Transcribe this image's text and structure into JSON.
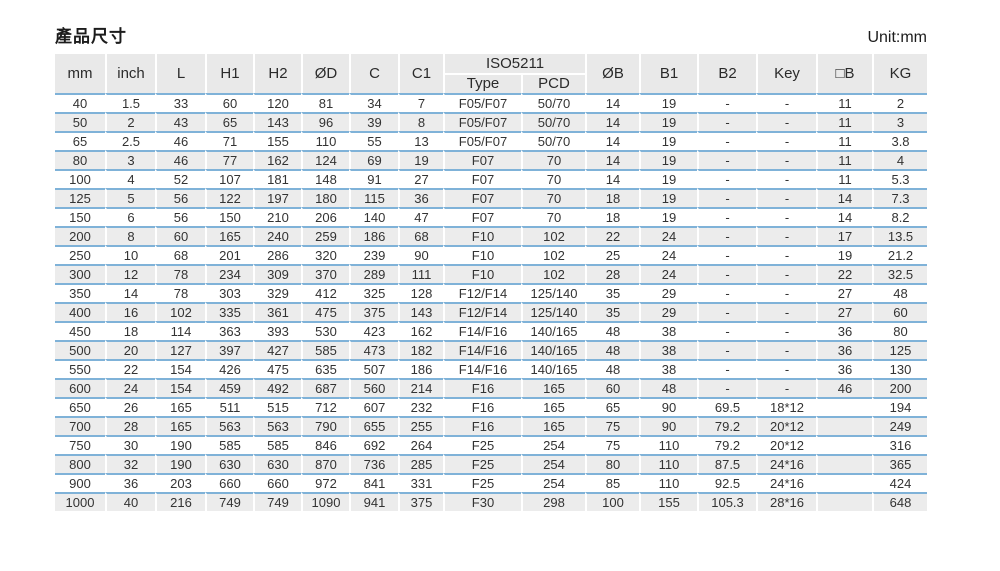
{
  "title": "產品尺寸",
  "unit_label": "Unit:mm",
  "table": {
    "columns": [
      "mm",
      "inch",
      "L",
      "H1",
      "H2",
      "ØD",
      "C",
      "C1",
      "ØB",
      "B1",
      "B2",
      "Key",
      "□B",
      "KG"
    ],
    "iso_group_label": "ISO5211",
    "iso_subcolumns": [
      "Type",
      "PCD"
    ],
    "rows": [
      [
        "40",
        "1.5",
        "33",
        "60",
        "120",
        "81",
        "34",
        "7",
        "F05/F07",
        "50/70",
        "14",
        "19",
        "-",
        "-",
        "11",
        "2"
      ],
      [
        "50",
        "2",
        "43",
        "65",
        "143",
        "96",
        "39",
        "8",
        "F05/F07",
        "50/70",
        "14",
        "19",
        "-",
        "-",
        "11",
        "3"
      ],
      [
        "65",
        "2.5",
        "46",
        "71",
        "155",
        "110",
        "55",
        "13",
        "F05/F07",
        "50/70",
        "14",
        "19",
        "-",
        "-",
        "11",
        "3.8"
      ],
      [
        "80",
        "3",
        "46",
        "77",
        "162",
        "124",
        "69",
        "19",
        "F07",
        "70",
        "14",
        "19",
        "-",
        "-",
        "11",
        "4"
      ],
      [
        "100",
        "4",
        "52",
        "107",
        "181",
        "148",
        "91",
        "27",
        "F07",
        "70",
        "14",
        "19",
        "-",
        "-",
        "11",
        "5.3"
      ],
      [
        "125",
        "5",
        "56",
        "122",
        "197",
        "180",
        "115",
        "36",
        "F07",
        "70",
        "18",
        "19",
        "-",
        "-",
        "14",
        "7.3"
      ],
      [
        "150",
        "6",
        "56",
        "150",
        "210",
        "206",
        "140",
        "47",
        "F07",
        "70",
        "18",
        "19",
        "-",
        "-",
        "14",
        "8.2"
      ],
      [
        "200",
        "8",
        "60",
        "165",
        "240",
        "259",
        "186",
        "68",
        "F10",
        "102",
        "22",
        "24",
        "-",
        "-",
        "17",
        "13.5"
      ],
      [
        "250",
        "10",
        "68",
        "201",
        "286",
        "320",
        "239",
        "90",
        "F10",
        "102",
        "25",
        "24",
        "-",
        "-",
        "19",
        "21.2"
      ],
      [
        "300",
        "12",
        "78",
        "234",
        "309",
        "370",
        "289",
        "111",
        "F10",
        "102",
        "28",
        "24",
        "-",
        "-",
        "22",
        "32.5"
      ],
      [
        "350",
        "14",
        "78",
        "303",
        "329",
        "412",
        "325",
        "128",
        "F12/F14",
        "125/140",
        "35",
        "29",
        "-",
        "-",
        "27",
        "48"
      ],
      [
        "400",
        "16",
        "102",
        "335",
        "361",
        "475",
        "375",
        "143",
        "F12/F14",
        "125/140",
        "35",
        "29",
        "-",
        "-",
        "27",
        "60"
      ],
      [
        "450",
        "18",
        "114",
        "363",
        "393",
        "530",
        "423",
        "162",
        "F14/F16",
        "140/165",
        "48",
        "38",
        "-",
        "-",
        "36",
        "80"
      ],
      [
        "500",
        "20",
        "127",
        "397",
        "427",
        "585",
        "473",
        "182",
        "F14/F16",
        "140/165",
        "48",
        "38",
        "-",
        "-",
        "36",
        "125"
      ],
      [
        "550",
        "22",
        "154",
        "426",
        "475",
        "635",
        "507",
        "186",
        "F14/F16",
        "140/165",
        "48",
        "38",
        "-",
        "-",
        "36",
        "130"
      ],
      [
        "600",
        "24",
        "154",
        "459",
        "492",
        "687",
        "560",
        "214",
        "F16",
        "165",
        "60",
        "48",
        "-",
        "-",
        "46",
        "200"
      ],
      [
        "650",
        "26",
        "165",
        "511",
        "515",
        "712",
        "607",
        "232",
        "F16",
        "165",
        "65",
        "90",
        "69.5",
        "18*12",
        "",
        "194"
      ],
      [
        "700",
        "28",
        "165",
        "563",
        "563",
        "790",
        "655",
        "255",
        "F16",
        "165",
        "75",
        "90",
        "79.2",
        "20*12",
        "",
        "249"
      ],
      [
        "750",
        "30",
        "190",
        "585",
        "585",
        "846",
        "692",
        "264",
        "F25",
        "254",
        "75",
        "110",
        "79.2",
        "20*12",
        "",
        "316"
      ],
      [
        "800",
        "32",
        "190",
        "630",
        "630",
        "870",
        "736",
        "285",
        "F25",
        "254",
        "80",
        "110",
        "87.5",
        "24*16",
        "",
        "365"
      ],
      [
        "900",
        "36",
        "203",
        "660",
        "660",
        "972",
        "841",
        "331",
        "F25",
        "254",
        "85",
        "110",
        "92.5",
        "24*16",
        "",
        "424"
      ],
      [
        "1000",
        "40",
        "216",
        "749",
        "749",
        "1090",
        "941",
        "375",
        "F30",
        "298",
        "100",
        "155",
        "105.3",
        "28*16",
        "",
        "648"
      ]
    ]
  }
}
